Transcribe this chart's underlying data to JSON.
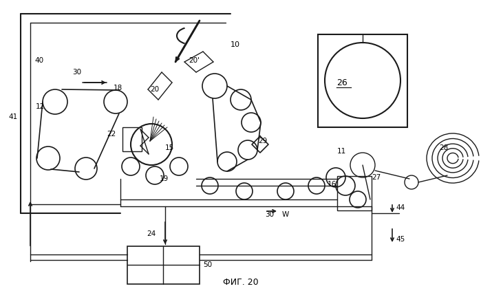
{
  "title": "ФИГ. 20",
  "bg_color": "#ffffff",
  "line_color": "#1a1a1a",
  "fig_width": 6.99,
  "fig_height": 4.26
}
